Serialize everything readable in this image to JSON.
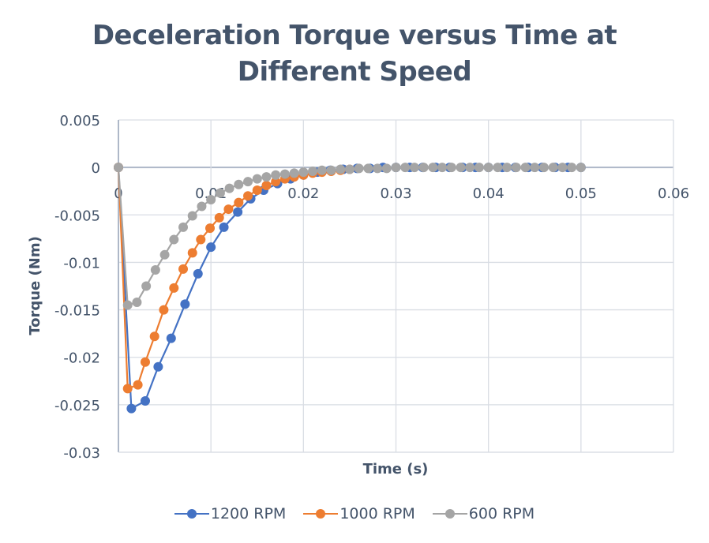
{
  "chart_data": {
    "type": "scatter",
    "title": "Deceleration Torque versus Time at Different Speed",
    "title_lines": [
      "Deceleration Torque versus Time at",
      "Different Speed"
    ],
    "xlabel": "Time (s)",
    "ylabel": "Torque (Nm)",
    "xlim": [
      0,
      0.06
    ],
    "ylim": [
      -0.03,
      0.005
    ],
    "x_ticks": [
      "0",
      "0.01",
      "0.02",
      "0.03",
      "0.04",
      "0.05",
      "0.06"
    ],
    "y_ticks": [
      "0.005",
      "0",
      "-0.005",
      "-0.01",
      "-0.015",
      "-0.02",
      "-0.025",
      "-0.03"
    ],
    "grid": true,
    "legend_position": "bottom",
    "series": [
      {
        "name": "1200 RPM",
        "color": "#4472c4",
        "x": [
          0,
          0.0014,
          0.0029,
          0.0043,
          0.0057,
          0.0072,
          0.0086,
          0.01,
          0.0114,
          0.0129,
          0.0143,
          0.0157,
          0.0172,
          0.0186,
          0.02,
          0.0215,
          0.0229,
          0.0243,
          0.0258,
          0.0272,
          0.0286,
          0.03,
          0.0315,
          0.0329,
          0.0343,
          0.0358,
          0.0372,
          0.0386,
          0.04,
          0.0415,
          0.0429,
          0.0443,
          0.0458,
          0.0472,
          0.0486,
          0.05
        ],
        "y": [
          0,
          -0.0254,
          -0.0246,
          -0.021,
          -0.018,
          -0.0144,
          -0.0112,
          -0.0084,
          -0.0063,
          -0.0047,
          -0.0033,
          -0.0024,
          -0.0017,
          -0.0012,
          -0.0008,
          -0.0005,
          -0.0003,
          -0.0002,
          -0.0001,
          -0.0001,
          0,
          0,
          0,
          0,
          0,
          0,
          0,
          0,
          0,
          0,
          0,
          0,
          0,
          0,
          0,
          0
        ]
      },
      {
        "name": "1000 RPM",
        "color": "#ed7d31",
        "x": [
          0,
          0.001,
          0.0021,
          0.0029,
          0.0039,
          0.0049,
          0.006,
          0.007,
          0.008,
          0.0089,
          0.0099,
          0.0109,
          0.0119,
          0.013,
          0.014,
          0.015,
          0.016,
          0.017,
          0.018,
          0.019,
          0.02,
          0.021,
          0.022,
          0.023,
          0.024,
          0.025
        ],
        "y": [
          0,
          -0.0233,
          -0.0229,
          -0.0205,
          -0.0178,
          -0.015,
          -0.0127,
          -0.0107,
          -0.009,
          -0.0076,
          -0.0064,
          -0.0053,
          -0.0044,
          -0.0037,
          -0.003,
          -0.0024,
          -0.0019,
          -0.0015,
          -0.0012,
          -0.001,
          -0.0008,
          -0.0006,
          -0.0005,
          -0.0004,
          -0.0003,
          -0.0002
        ]
      },
      {
        "name": "600 RPM",
        "color": "#a5a5a5",
        "x": [
          0,
          0.001,
          0.002,
          0.003,
          0.004,
          0.005,
          0.006,
          0.007,
          0.008,
          0.009,
          0.01,
          0.011,
          0.012,
          0.013,
          0.014,
          0.015,
          0.016,
          0.017,
          0.018,
          0.019,
          0.02,
          0.021,
          0.022,
          0.023,
          0.024,
          0.025,
          0.026,
          0.027,
          0.028,
          0.029,
          0.03,
          0.031,
          0.032,
          0.033,
          0.034,
          0.035,
          0.036,
          0.037,
          0.038,
          0.039,
          0.04,
          0.041,
          0.042,
          0.043,
          0.044,
          0.045,
          0.046,
          0.047,
          0.048,
          0.049,
          0.05
        ],
        "y": [
          0,
          -0.0145,
          -0.0142,
          -0.0125,
          -0.0108,
          -0.0092,
          -0.0076,
          -0.0063,
          -0.0051,
          -0.0041,
          -0.0034,
          -0.0027,
          -0.0022,
          -0.0018,
          -0.0015,
          -0.0012,
          -0.001,
          -0.0008,
          -0.0007,
          -0.0006,
          -0.0005,
          -0.0004,
          -0.0003,
          -0.0003,
          -0.0002,
          -0.0002,
          -0.0001,
          -0.0001,
          -0.0001,
          -0.0001,
          0,
          0,
          0,
          0,
          0,
          0,
          0,
          0,
          0,
          0,
          0,
          0,
          0,
          0,
          0,
          0,
          0,
          0,
          0,
          0,
          0
        ]
      }
    ]
  }
}
